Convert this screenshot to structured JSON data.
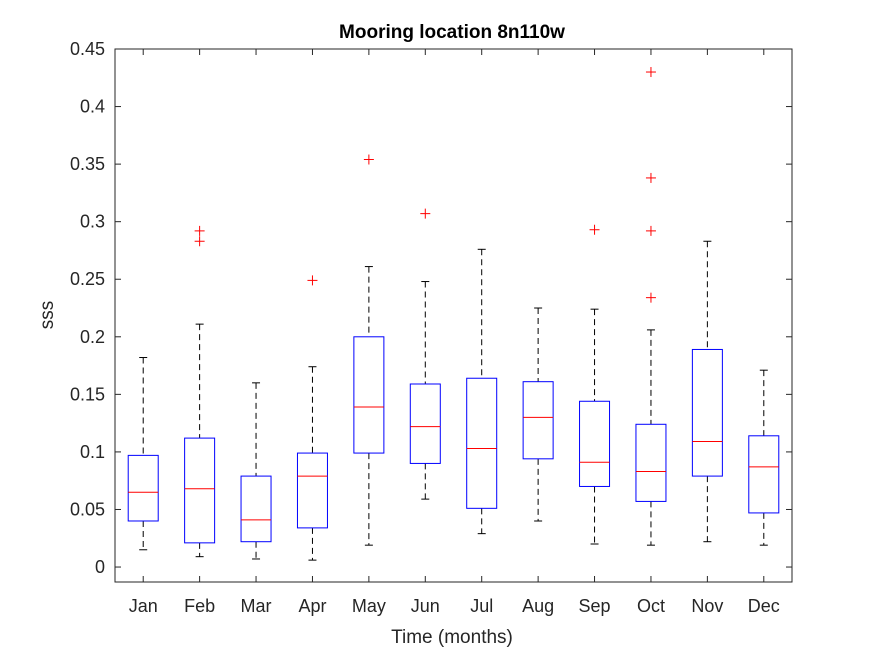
{
  "chart_data": {
    "type": "box",
    "title": "Mooring location 8n110w",
    "xlabel": "Time (months)",
    "ylabel": "sss",
    "ylim": [
      -0.013,
      0.45
    ],
    "yticks": [
      0,
      0.05,
      0.1,
      0.15,
      0.2,
      0.25,
      0.3,
      0.35,
      0.4,
      0.45
    ],
    "ytick_labels": [
      "0",
      "0.05",
      "0.1",
      "0.15",
      "0.2",
      "0.25",
      "0.3",
      "0.35",
      "0.4",
      "0.45"
    ],
    "categories": [
      "Jan",
      "Feb",
      "Mar",
      "Apr",
      "May",
      "Jun",
      "Jul",
      "Aug",
      "Sep",
      "Oct",
      "Nov",
      "Dec"
    ],
    "boxes": [
      {
        "whisker_low": 0.015,
        "q1": 0.04,
        "median": 0.065,
        "q3": 0.097,
        "whisker_high": 0.182,
        "outliers": []
      },
      {
        "whisker_low": 0.009,
        "q1": 0.021,
        "median": 0.068,
        "q3": 0.112,
        "whisker_high": 0.211,
        "outliers": [
          0.292,
          0.283
        ]
      },
      {
        "whisker_low": 0.007,
        "q1": 0.022,
        "median": 0.041,
        "q3": 0.079,
        "whisker_high": 0.16,
        "outliers": []
      },
      {
        "whisker_low": 0.006,
        "q1": 0.034,
        "median": 0.079,
        "q3": 0.099,
        "whisker_high": 0.174,
        "outliers": [
          0.249
        ]
      },
      {
        "whisker_low": 0.019,
        "q1": 0.099,
        "median": 0.139,
        "q3": 0.2,
        "whisker_high": 0.261,
        "outliers": [
          0.354
        ]
      },
      {
        "whisker_low": 0.059,
        "q1": 0.09,
        "median": 0.122,
        "q3": 0.159,
        "whisker_high": 0.248,
        "outliers": [
          0.307
        ]
      },
      {
        "whisker_low": 0.029,
        "q1": 0.051,
        "median": 0.103,
        "q3": 0.164,
        "whisker_high": 0.276,
        "outliers": []
      },
      {
        "whisker_low": 0.04,
        "q1": 0.094,
        "median": 0.13,
        "q3": 0.161,
        "whisker_high": 0.225,
        "outliers": []
      },
      {
        "whisker_low": 0.02,
        "q1": 0.07,
        "median": 0.091,
        "q3": 0.144,
        "whisker_high": 0.224,
        "outliers": [
          0.293
        ]
      },
      {
        "whisker_low": 0.019,
        "q1": 0.057,
        "median": 0.083,
        "q3": 0.124,
        "whisker_high": 0.206,
        "outliers": [
          0.43,
          0.338,
          0.292,
          0.234
        ]
      },
      {
        "whisker_low": 0.022,
        "q1": 0.079,
        "median": 0.109,
        "q3": 0.189,
        "whisker_high": 0.283,
        "outliers": []
      },
      {
        "whisker_low": 0.019,
        "q1": 0.047,
        "median": 0.087,
        "q3": 0.114,
        "whisker_high": 0.171,
        "outliers": []
      }
    ],
    "colors": {
      "box": "#0000ff",
      "median": "#ff0000",
      "outlier": "#ff0000",
      "whisker": "#000000",
      "axis": "#262626"
    },
    "grid": false
  }
}
